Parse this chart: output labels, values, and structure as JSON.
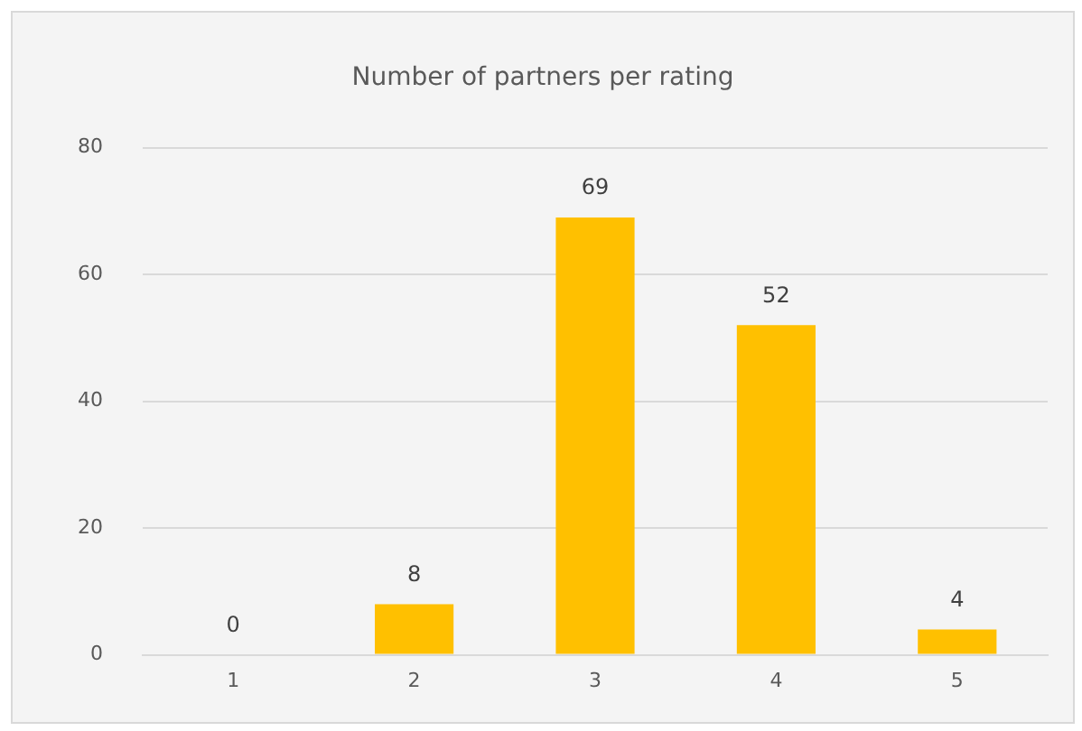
{
  "chart_data": {
    "type": "bar",
    "title": "Number of partners per rating",
    "categories": [
      "1",
      "2",
      "3",
      "4",
      "5"
    ],
    "values": [
      0,
      8,
      69,
      52,
      4
    ],
    "color": "#ffc000",
    "ylim": [
      0,
      80
    ],
    "yticks": [
      0,
      20,
      40,
      60,
      80
    ],
    "grid": "y",
    "data_labels": true
  }
}
